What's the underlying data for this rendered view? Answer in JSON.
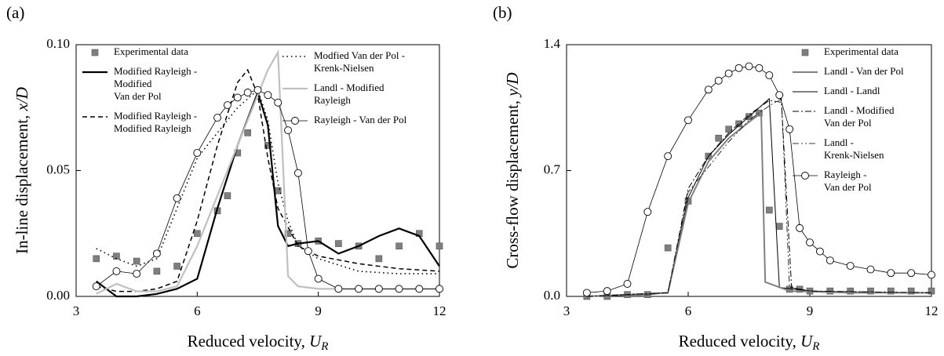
{
  "chart_data": [
    {
      "type": "line",
      "panel_label": "(a)",
      "xlabel": {
        "text": "Reduced velocity, ",
        "var": "U",
        "sub": "R"
      },
      "ylabel": {
        "text": "In-line displacement, ",
        "var": "x/D"
      },
      "xlim": [
        3,
        12
      ],
      "xticks": [
        3,
        6,
        9,
        12
      ],
      "ylim": [
        0,
        0.1
      ],
      "yticks": [
        {
          "value": 0,
          "label": "0.00"
        },
        {
          "value": 0.05,
          "label": "0.05"
        },
        {
          "value": 0.1,
          "label": "0.10"
        }
      ],
      "series": [
        {
          "name": [
            "Experimental data"
          ],
          "color": "#7f7f7f",
          "linestyle": "none",
          "marker": "square",
          "x": [
            3.5,
            4,
            4.5,
            5,
            5.5,
            6,
            6.5,
            6.75,
            7,
            7.25,
            7.75,
            8,
            8.25,
            8.5,
            9,
            9.5,
            10,
            10.5,
            11,
            11.5,
            12
          ],
          "values": [
            0.015,
            0.016,
            0.014,
            0.01,
            0.012,
            0.025,
            0.034,
            0.04,
            0.057,
            0.065,
            0.06,
            0.042,
            0.025,
            0.021,
            0.022,
            0.021,
            0.02,
            0.015,
            0.02,
            0.025,
            0.02
          ]
        },
        {
          "name": [
            "Modified Rayleigh -",
            "Modified",
            "Van der Pol"
          ],
          "color": "#000000",
          "linestyle": "solid",
          "linewidth": 2.2,
          "x": [
            3.5,
            4,
            4.5,
            5,
            5.5,
            6,
            6.5,
            7,
            7.5,
            7.75,
            8,
            8.25,
            8.5,
            9,
            9.5,
            10,
            10.5,
            11,
            11.5,
            12
          ],
          "values": [
            0.006,
            0.0,
            0.0,
            0.001,
            0.003,
            0.007,
            0.035,
            0.06,
            0.081,
            0.068,
            0.028,
            0.02,
            0.021,
            0.022,
            0.017,
            0.02,
            0.024,
            0.027,
            0.024,
            0.012
          ]
        },
        {
          "name": [
            "Modified Rayleigh -",
            "Modified Rayleigh"
          ],
          "color": "#000000",
          "linestyle": "dashed",
          "linewidth": 1.5,
          "x": [
            3.5,
            4,
            4.5,
            5,
            5.5,
            6,
            6.5,
            7,
            7.25,
            7.5,
            7.75,
            8,
            8.5,
            9,
            10,
            11,
            12
          ],
          "values": [
            0.004,
            0.002,
            0.002,
            0.003,
            0.006,
            0.03,
            0.06,
            0.085,
            0.09,
            0.08,
            0.055,
            0.035,
            0.02,
            0.016,
            0.013,
            0.011,
            0.01
          ]
        },
        {
          "name": [
            "Modfied Van der Pol -",
            "Krenk-Nielsen"
          ],
          "color": "#000000",
          "linestyle": "dotted",
          "linewidth": 1.6,
          "x": [
            3.5,
            4,
            4.5,
            5,
            5.5,
            6,
            6.5,
            7,
            7.5,
            7.75,
            8,
            8.25,
            8.5,
            9,
            10,
            11,
            12
          ],
          "values": [
            0.019,
            0.015,
            0.012,
            0.015,
            0.035,
            0.055,
            0.065,
            0.075,
            0.082,
            0.07,
            0.045,
            0.03,
            0.02,
            0.015,
            0.01,
            0.009,
            0.009
          ]
        },
        {
          "name": [
            "Landl - Modified",
            "Rayleigh"
          ],
          "color": "#c0c0c0",
          "linestyle": "solid",
          "linewidth": 2.2,
          "x": [
            3.5,
            4,
            4.5,
            5,
            5.5,
            6,
            6.5,
            7,
            7.5,
            7.75,
            8,
            8.25,
            8.5,
            9,
            10,
            11,
            12
          ],
          "values": [
            0.001,
            0.005,
            0.002,
            0.002,
            0.004,
            0.02,
            0.04,
            0.06,
            0.08,
            0.09,
            0.097,
            0.008,
            0.004,
            0.003,
            0.003,
            0.003,
            0.003
          ]
        },
        {
          "name": [
            "Rayleigh - Van der Pol"
          ],
          "color": "#000000",
          "linestyle": "solid",
          "linewidth": 0.8,
          "marker": "circle",
          "x": [
            3.5,
            4,
            4.5,
            5,
            5.5,
            6,
            6.5,
            6.75,
            7,
            7.25,
            7.5,
            7.75,
            8,
            8.25,
            8.5,
            8.75,
            9,
            9.5,
            10,
            10.5,
            11,
            11.5,
            12
          ],
          "values": [
            0.004,
            0.01,
            0.009,
            0.017,
            0.039,
            0.057,
            0.071,
            0.076,
            0.079,
            0.081,
            0.082,
            0.08,
            0.077,
            0.066,
            0.049,
            0.018,
            0.007,
            0.003,
            0.003,
            0.003,
            0.003,
            0.003,
            0.003
          ]
        }
      ]
    },
    {
      "type": "line",
      "panel_label": "(b)",
      "xlabel": {
        "text": "Reduced velocity, ",
        "var": "U",
        "sub": "R"
      },
      "ylabel": {
        "text": "Cross-flow displacement, ",
        "var": "y/D"
      },
      "xlim": [
        3,
        12
      ],
      "xticks": [
        3,
        6,
        9,
        12
      ],
      "ylim": [
        0,
        1.4
      ],
      "yticks": [
        {
          "value": 0,
          "label": "0.0"
        },
        0.7,
        1.4
      ],
      "series": [
        {
          "name": [
            "Experimental data"
          ],
          "color": "#7f7f7f",
          "linestyle": "none",
          "marker": "square",
          "x": [
            3.5,
            4,
            4.5,
            5,
            5.5,
            6,
            6.5,
            6.75,
            7,
            7.25,
            7.5,
            7.75,
            8,
            8.25,
            8.5,
            8.75,
            9,
            9.5,
            10,
            10.5,
            11,
            11.5,
            12
          ],
          "values": [
            0.0,
            0.0,
            0.01,
            0.01,
            0.27,
            0.53,
            0.78,
            0.88,
            0.93,
            0.96,
            1.0,
            1.02,
            0.48,
            0.39,
            0.04,
            0.04,
            0.03,
            0.03,
            0.03,
            0.03,
            0.03,
            0.03,
            0.03
          ]
        },
        {
          "name": [
            "Landl - Van der Pol"
          ],
          "color": "#000000",
          "linestyle": "solid",
          "linewidth": 1,
          "x": [
            3.5,
            5,
            5.5,
            6,
            6.5,
            7,
            7.5,
            8,
            8.25,
            9,
            10,
            12
          ],
          "values": [
            0.0,
            0.01,
            0.02,
            0.55,
            0.78,
            0.9,
            1.0,
            1.1,
            0.05,
            0.03,
            0.02,
            0.02
          ]
        },
        {
          "name": [
            "Landl - Landl"
          ],
          "color": "#808080",
          "linestyle": "solid",
          "linewidth": 2,
          "x": [
            3.5,
            5.5,
            6,
            6.5,
            7,
            7.5,
            7.8,
            7.9,
            8.5,
            10,
            12
          ],
          "values": [
            0.0,
            0.02,
            0.52,
            0.75,
            0.88,
            0.97,
            1.02,
            0.08,
            0.03,
            0.02,
            0.02
          ]
        },
        {
          "name": [
            "Landl - Modified",
            "Van der Pol"
          ],
          "color": "#000000",
          "linestyle": "dashdot",
          "linewidth": 1,
          "x": [
            3.5,
            5.5,
            6,
            6.5,
            7,
            7.5,
            8,
            8.3,
            8.55,
            9,
            12
          ],
          "values": [
            0.0,
            0.02,
            0.6,
            0.78,
            0.91,
            1.01,
            1.09,
            1.08,
            0.05,
            0.03,
            0.02
          ]
        },
        {
          "name": [
            "Landl -",
            "Krenk-Nielsen"
          ],
          "color": "#000000",
          "linestyle": "dashdotdot",
          "linewidth": 0.8,
          "x": [
            3.5,
            5.5,
            6,
            6.5,
            7,
            7.5,
            8,
            8.3,
            8.5,
            9,
            12
          ],
          "values": [
            0.0,
            0.02,
            0.58,
            0.72,
            0.86,
            0.98,
            1.06,
            1.1,
            0.05,
            0.03,
            0.02
          ]
        },
        {
          "name": [
            "Rayleigh -",
            "Van der Pol"
          ],
          "color": "#000000",
          "linestyle": "solid",
          "linewidth": 0.8,
          "marker": "circle",
          "x": [
            3.5,
            4,
            4.5,
            5,
            5.5,
            6,
            6.5,
            6.75,
            7,
            7.25,
            7.5,
            7.75,
            8,
            8.25,
            8.5,
            8.75,
            9,
            9.25,
            9.5,
            10,
            10.5,
            11,
            11.5,
            12
          ],
          "values": [
            0.02,
            0.03,
            0.07,
            0.47,
            0.78,
            0.98,
            1.15,
            1.2,
            1.24,
            1.27,
            1.28,
            1.27,
            1.23,
            1.12,
            0.93,
            0.38,
            0.3,
            0.25,
            0.2,
            0.17,
            0.15,
            0.13,
            0.13,
            0.12
          ]
        }
      ]
    }
  ]
}
